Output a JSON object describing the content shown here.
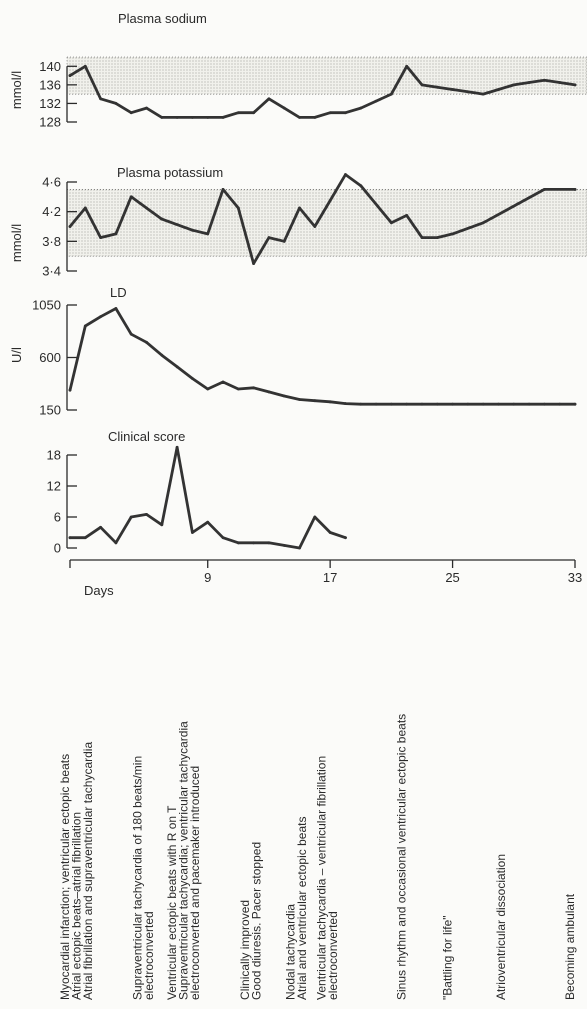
{
  "chart_data": [
    {
      "type": "line",
      "title": "Plasma sodium",
      "ylabel": "mmol/l",
      "ylim": [
        128,
        142
      ],
      "yticks": [
        "140",
        "136",
        "132",
        "128"
      ],
      "normal_range": [
        134,
        142
      ],
      "x": [
        0,
        1,
        2,
        3,
        4,
        5,
        6,
        7,
        8,
        9,
        10,
        11,
        12,
        13,
        14,
        15,
        16,
        17,
        18,
        19,
        20,
        21,
        22,
        23,
        24,
        25,
        26,
        27,
        28,
        29,
        30,
        31,
        32,
        33
      ],
      "values": [
        138,
        140,
        133,
        132,
        130,
        131,
        129,
        129,
        129,
        129,
        129,
        130,
        130,
        133,
        131,
        129,
        129,
        130,
        130,
        131,
        132.5,
        134,
        140,
        136,
        135.5,
        135,
        134.5,
        134,
        135,
        136,
        136.5,
        137,
        136.5,
        136
      ]
    },
    {
      "type": "line",
      "title": "Plasma potassium",
      "ylabel": "mmol/l",
      "ylim": [
        3.4,
        4.6
      ],
      "yticks": [
        "4·6",
        "4·2",
        "3·8",
        "3·4"
      ],
      "normal_range": [
        3.6,
        4.5
      ],
      "x": [
        0,
        1,
        2,
        3,
        4,
        5,
        6,
        8,
        9,
        10,
        11,
        12,
        13,
        14,
        15,
        16,
        17,
        18,
        19,
        21,
        22,
        23,
        24,
        25,
        27,
        31,
        33
      ],
      "values": [
        4.0,
        4.25,
        3.85,
        3.9,
        4.4,
        4.25,
        4.1,
        3.95,
        3.9,
        4.5,
        4.25,
        3.5,
        3.85,
        3.8,
        4.25,
        4.0,
        4.35,
        4.7,
        4.55,
        4.05,
        4.15,
        3.85,
        3.85,
        3.9,
        4.05,
        4.5,
        4.5
      ]
    },
    {
      "type": "line",
      "title": "LD",
      "ylabel": "U/l",
      "ylim": [
        150,
        1050
      ],
      "yticks": [
        "1050",
        "600",
        "150"
      ],
      "x": [
        0,
        1,
        2,
        3,
        4,
        5,
        6,
        7,
        8,
        9,
        10,
        11,
        12,
        13,
        14,
        15,
        16,
        17,
        18,
        19,
        20,
        21,
        22,
        23,
        24,
        25,
        26,
        27,
        28,
        29,
        30,
        31,
        32,
        33
      ],
      "values": [
        320,
        870,
        950,
        1020,
        800,
        730,
        620,
        520,
        420,
        330,
        390,
        330,
        340,
        305,
        270,
        240,
        230,
        220,
        205,
        200,
        200,
        200,
        200,
        200,
        200,
        200,
        200,
        200,
        200,
        200,
        200,
        200,
        200,
        200
      ]
    },
    {
      "type": "line",
      "title": "Clinical score",
      "ylim": [
        0,
        18
      ],
      "yticks": [
        "18",
        "12",
        "6",
        "0"
      ],
      "x": [
        0,
        1,
        2,
        3,
        4,
        5,
        6,
        7,
        8,
        9,
        10,
        11,
        12,
        13,
        14,
        15,
        16,
        17,
        18
      ],
      "values": [
        2,
        2,
        4,
        1,
        6,
        6.5,
        4.5,
        19.5,
        3,
        5,
        2,
        1,
        1,
        1,
        0.5,
        0,
        6,
        3,
        2
      ]
    }
  ],
  "x_axis": {
    "label": "Days",
    "xlim": [
      0,
      33
    ],
    "ticks": [
      {
        "value": 9,
        "label": "9"
      },
      {
        "value": 17,
        "label": "17"
      },
      {
        "value": 25,
        "label": "25"
      },
      {
        "value": 33,
        "label": "33"
      }
    ]
  },
  "events": [
    {
      "day": 0,
      "lines": [
        "Myocardial infarction; ventricular ectopic beats",
        "Atrial ectopic beats–atrial fibrillation",
        "Atrial fibrillation and supraventricular tachycardia"
      ]
    },
    {
      "day": 4,
      "lines": [
        "Supraventricular tachycardia of 180 beats/min",
        "electroconverted"
      ]
    },
    {
      "day": 5.5,
      "lines": [
        "Ventricular ectopic beats with R on T"
      ]
    },
    {
      "day": 7,
      "lines": [
        "Supraventricular tachycardia; ventricular tachycardia",
        "electroconverted and pacemaker introduced"
      ]
    },
    {
      "day": 11,
      "lines": [
        "Clinically improved",
        "Good diuresis. Pacer stopped"
      ]
    },
    {
      "day": 14,
      "lines": [
        "Nodal tachycardia",
        "Atrial and ventricular ectopic beats"
      ]
    },
    {
      "day": 16,
      "lines": [
        "Ventricular tachycardia – ventricular fibrillation",
        "electroconverted"
      ]
    },
    {
      "day": 20.5,
      "lines": [
        "Sinus rhythm and occasional ventricular ectopic beats"
      ]
    },
    {
      "day": 23.5,
      "lines": [
        "\"Battling for life\""
      ]
    },
    {
      "day": 27,
      "lines": [
        "Atrioventricular dissociation"
      ]
    },
    {
      "day": 31.5,
      "lines": [
        "Becoming ambulant"
      ]
    }
  ]
}
